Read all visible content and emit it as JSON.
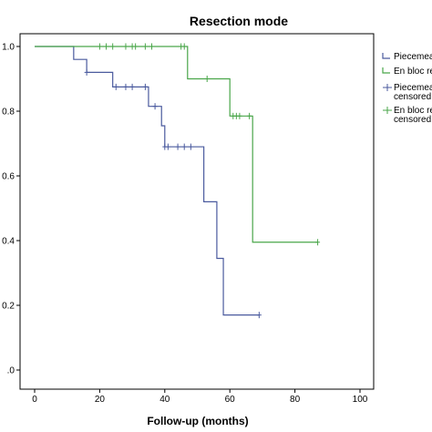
{
  "chart_data": {
    "type": "line",
    "title": "Resection mode",
    "xlabel": "Follow-up (months)",
    "ylabel": "",
    "xlim": [
      0,
      100
    ],
    "ylim": [
      0,
      1.0
    ],
    "x_ticks": [
      "0",
      "20",
      "40",
      "60",
      "80",
      "100"
    ],
    "y_ticks": [
      ".0",
      "0.2",
      "0.4",
      "0.6",
      "0.8",
      "1.0"
    ],
    "y_tick_values": [
      0,
      0.2,
      0.4,
      0.6,
      0.8,
      1.0
    ],
    "x_tick_values": [
      0,
      20,
      40,
      60,
      80,
      100
    ],
    "grid": false,
    "legend_position": "top-right",
    "legend": [
      {
        "label": "Piecemeal",
        "type": "line",
        "color": "#4a5a9e"
      },
      {
        "label": "En bloc resection",
        "type": "line",
        "color": "#4aa64a"
      },
      {
        "label": "Piecemeal-",
        "label2": "censored",
        "type": "censor",
        "color": "#4a5a9e"
      },
      {
        "label": "En bloc resection-",
        "label2": "censored",
        "type": "censor",
        "color": "#4aa64a"
      }
    ],
    "series": [
      {
        "name": "Piecemeal",
        "color": "#4a5a9e",
        "steps": [
          [
            0,
            1.0
          ],
          [
            12,
            0.96
          ],
          [
            16,
            0.92
          ],
          [
            24,
            0.875
          ],
          [
            35,
            0.815
          ],
          [
            39,
            0.755
          ],
          [
            40,
            0.69
          ],
          [
            52,
            0.52
          ],
          [
            56,
            0.345
          ],
          [
            58,
            0.17
          ],
          [
            69,
            0.17
          ]
        ],
        "censored": [
          [
            16,
            0.92
          ],
          [
            25,
            0.875
          ],
          [
            28,
            0.875
          ],
          [
            30,
            0.875
          ],
          [
            34,
            0.875
          ],
          [
            37,
            0.815
          ],
          [
            40,
            0.69
          ],
          [
            41,
            0.69
          ],
          [
            44,
            0.69
          ],
          [
            46,
            0.69
          ],
          [
            48,
            0.69
          ],
          [
            69,
            0.17
          ]
        ]
      },
      {
        "name": "En bloc resection",
        "color": "#4aa64a",
        "steps": [
          [
            0,
            1.0
          ],
          [
            47,
            0.9
          ],
          [
            60,
            0.785
          ],
          [
            67,
            0.395
          ],
          [
            87,
            0.395
          ]
        ],
        "censored": [
          [
            20,
            1.0
          ],
          [
            22,
            1.0
          ],
          [
            24,
            1.0
          ],
          [
            28,
            1.0
          ],
          [
            30,
            1.0
          ],
          [
            31,
            1.0
          ],
          [
            34,
            1.0
          ],
          [
            36,
            1.0
          ],
          [
            45,
            1.0
          ],
          [
            46,
            1.0
          ],
          [
            53,
            0.9
          ],
          [
            61,
            0.785
          ],
          [
            62,
            0.785
          ],
          [
            63,
            0.785
          ],
          [
            66,
            0.785
          ],
          [
            87,
            0.395
          ]
        ]
      }
    ]
  }
}
